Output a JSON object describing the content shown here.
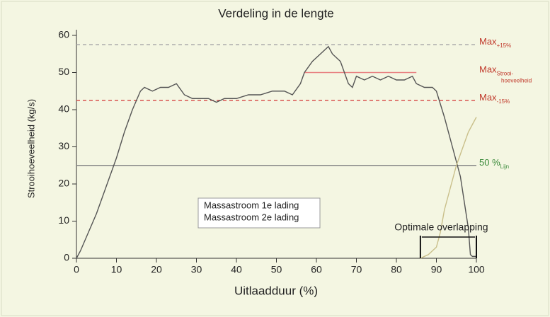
{
  "chart_data": {
    "type": "line",
    "title": "Verdeling in de lengte",
    "x_label": "Uitlaadduur (%)",
    "y_label": "Strooihoeveelheid (kg/s)",
    "xlim": [
      0,
      100
    ],
    "xticks": [
      0,
      10,
      20,
      30,
      40,
      50,
      60,
      70,
      80,
      90,
      100
    ],
    "ylim": [
      0,
      60
    ],
    "yticks": [
      0,
      10,
      20,
      30,
      40,
      50,
      60
    ],
    "grid": false,
    "series": [
      {
        "name": "Massastroom 1e lading",
        "color": "#555555",
        "x": [
          0,
          1,
          3,
          5,
          7,
          9,
          10,
          12,
          14,
          16,
          17,
          19,
          21,
          23,
          25,
          27,
          29,
          31,
          33,
          35,
          37,
          40,
          43,
          46,
          49,
          52,
          54,
          56,
          57,
          59,
          61,
          63,
          64,
          66,
          67,
          68,
          69,
          70,
          72,
          74,
          76,
          78,
          80,
          82,
          84,
          85,
          87,
          89,
          90,
          92,
          94,
          96,
          97,
          98,
          98.5,
          99,
          100
        ],
        "values": [
          0,
          2,
          7,
          12,
          18,
          24,
          27,
          34,
          40,
          45,
          46,
          45,
          46,
          46,
          47,
          44,
          43,
          43,
          43,
          42,
          43,
          43,
          44,
          44,
          45,
          45,
          44,
          47,
          50,
          53,
          55,
          57,
          55,
          53,
          50,
          47,
          46,
          49,
          48,
          49,
          48,
          49,
          48,
          48,
          49,
          47,
          46,
          46,
          45,
          38,
          30,
          22,
          15,
          8,
          1,
          0.5,
          0.5
        ]
      },
      {
        "name": "Massastroom 2e lading",
        "color": "#c9bf8a",
        "x": [
          86,
          88,
          90,
          91,
          92,
          93,
          94,
          95,
          96,
          97,
          98,
          99,
          100
        ],
        "values": [
          0,
          1,
          3,
          7,
          13,
          17,
          21,
          25,
          28,
          31,
          34,
          36,
          38
        ]
      }
    ],
    "reference_lines": [
      {
        "value": 57.5,
        "color": "#aaaaaa",
        "style": "dashed",
        "label": "Max",
        "sub": [
          "+15%"
        ],
        "label_color": "#c0392b"
      },
      {
        "value": 50,
        "color": "#e88080",
        "style": "solid",
        "xrange": [
          57,
          85
        ],
        "label": "Max",
        "sub": [
          "Strooi-",
          "hoeveelheid"
        ],
        "label_color": "#c0392b"
      },
      {
        "value": 42.5,
        "color": "#d9534f",
        "style": "dashed",
        "label": "Max",
        "sub": [
          "-15%"
        ],
        "label_color": "#c0392b"
      },
      {
        "value": 25,
        "color": "#888888",
        "style": "solid",
        "label": "50 %",
        "sub": [
          "Lijn"
        ],
        "label_color": "#3a8a3a"
      }
    ],
    "annotation": {
      "text": "Optimale overlapping",
      "xrange": [
        86,
        100
      ]
    }
  }
}
